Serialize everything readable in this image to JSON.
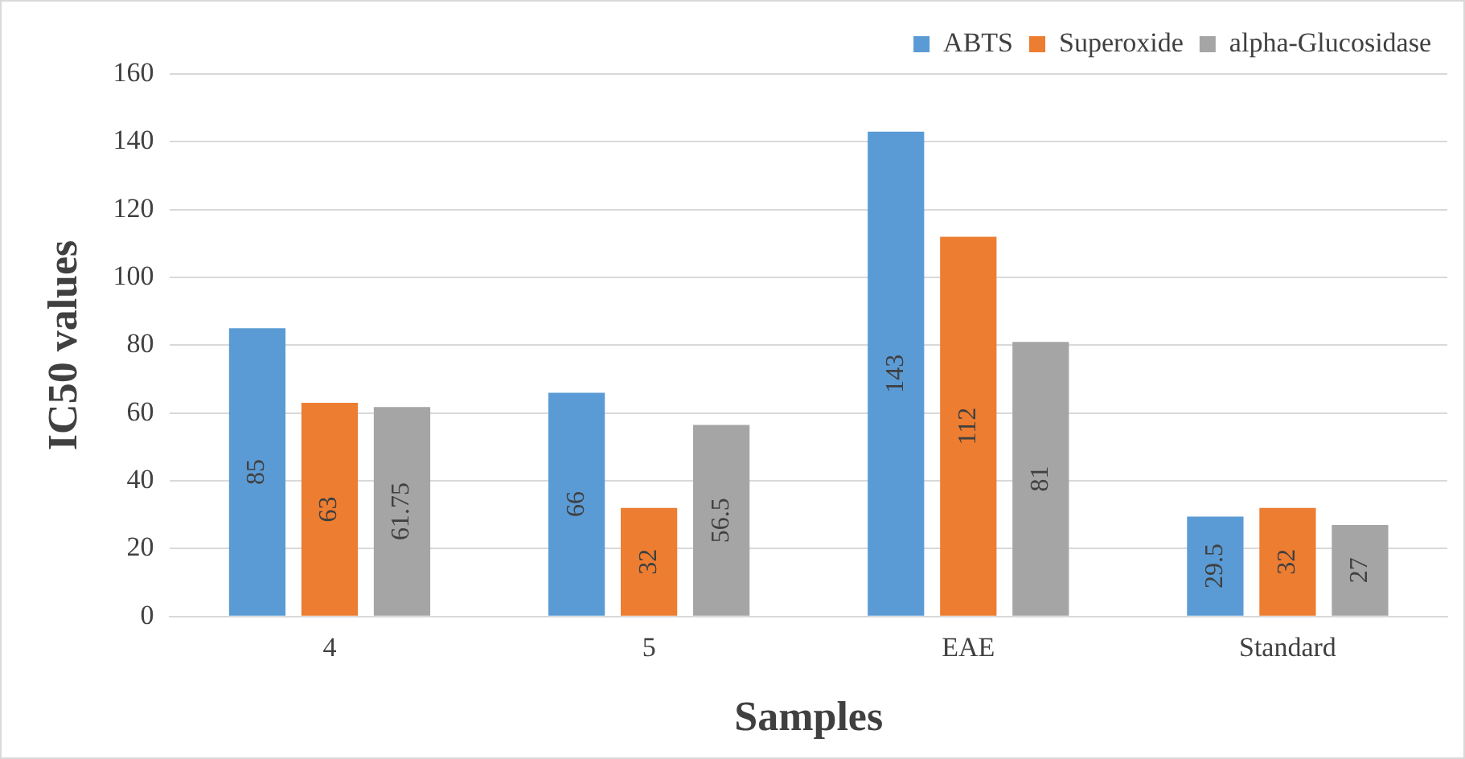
{
  "chart_data": {
    "type": "bar",
    "xlabel": "Samples",
    "ylabel": "IC50 values",
    "categories": [
      "4",
      "5",
      "EAE",
      "Standard"
    ],
    "series": [
      {
        "name": "ABTS",
        "color": "#5b9bd5",
        "values": [
          85,
          66,
          143,
          29.5
        ]
      },
      {
        "name": "Superoxide",
        "color": "#ed7d31",
        "values": [
          63,
          32,
          112,
          32
        ]
      },
      {
        "name": "alpha-Glucosidase",
        "color": "#a5a5a5",
        "values": [
          61.75,
          56.5,
          81,
          27
        ]
      }
    ],
    "ylim": [
      0,
      160
    ],
    "yticks": [
      0,
      20,
      40,
      60,
      80,
      100,
      120,
      140,
      160
    ],
    "grid": "y",
    "legend": "top right",
    "data_labels": true
  }
}
